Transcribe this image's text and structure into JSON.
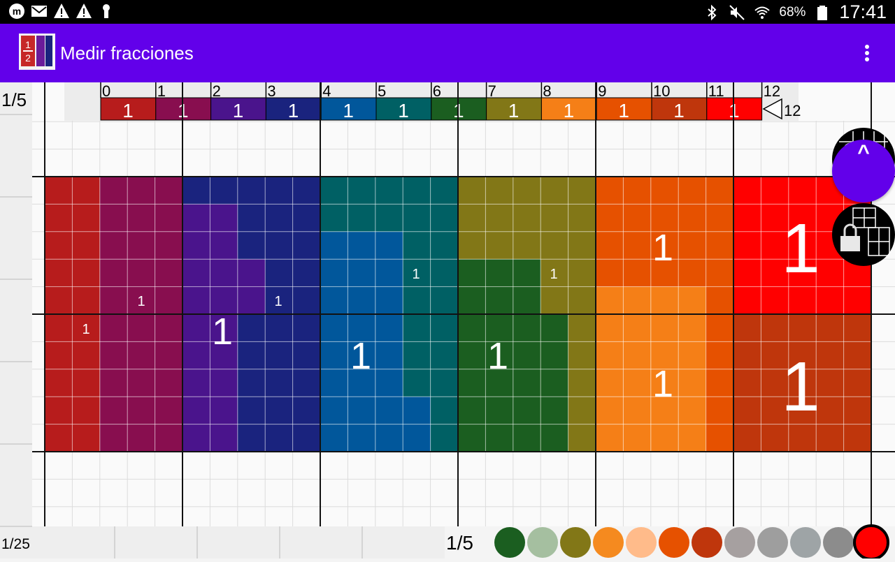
{
  "status_bar": {
    "left_icons": [
      "app-logo-icon",
      "mail-icon",
      "warning-icon",
      "warning-icon",
      "keyhole-icon"
    ],
    "right_icons": [
      "bluetooth-icon",
      "mute-icon",
      "wifi-icon",
      "battery-icon"
    ],
    "battery_percent": "68%",
    "clock": "17:41"
  },
  "app_bar": {
    "title": "Medir fracciones",
    "app_icon": "half-fraction-icon",
    "menu_icon": "more-vert-icon",
    "color": "#6200ea"
  },
  "ruler": {
    "ticks": [
      "0",
      "1",
      "2",
      "3",
      "4",
      "5",
      "6",
      "7",
      "8",
      "9",
      "10",
      "11",
      "12"
    ],
    "segment_label": "1",
    "segment_colors": [
      "#b71c1c",
      "#880e4f",
      "#4a148c",
      "#1a237e",
      "#01579b",
      "#006064",
      "#1b5e20",
      "#827717",
      "#f57f17",
      "#e65100",
      "#bf360c",
      "#ff0000"
    ],
    "end_value": "12"
  },
  "labels": {
    "bar_fraction": "1/5",
    "bottom_left_fraction": "1/25",
    "bottom_mid_fraction": "1/5",
    "fab_label": "^"
  },
  "pieces": [
    {
      "color": "#b71c1c",
      "label": "1"
    },
    {
      "color": "#880e4f",
      "label": "1"
    },
    {
      "color": "#4a148c",
      "label": "1"
    },
    {
      "color": "#1a237e",
      "label": "1"
    },
    {
      "color": "#01579b",
      "label": "1"
    },
    {
      "color": "#006064",
      "label": "1"
    },
    {
      "color": "#1b5e20",
      "label": "1"
    },
    {
      "color": "#827717",
      "label": "1"
    },
    {
      "color": "#f57f17",
      "label": "1"
    },
    {
      "color": "#e65100",
      "label": "1"
    },
    {
      "color": "#bf360c",
      "label": "1"
    },
    {
      "color": "#ff0000",
      "label": "1"
    }
  ],
  "side_buttons": [
    "lock-grid-icon",
    "lock-blocks-icon"
  ],
  "palette": [
    "#1b5e20",
    "#a5bfa0",
    "#827717",
    "#f58a1f",
    "#ffbb8a",
    "#e65100",
    "#bf360c",
    "#a6a0a0",
    "#9e9e9e",
    "#9ea4a6",
    "#8c8c8c",
    "#ff0000"
  ],
  "palette_selected": 11
}
